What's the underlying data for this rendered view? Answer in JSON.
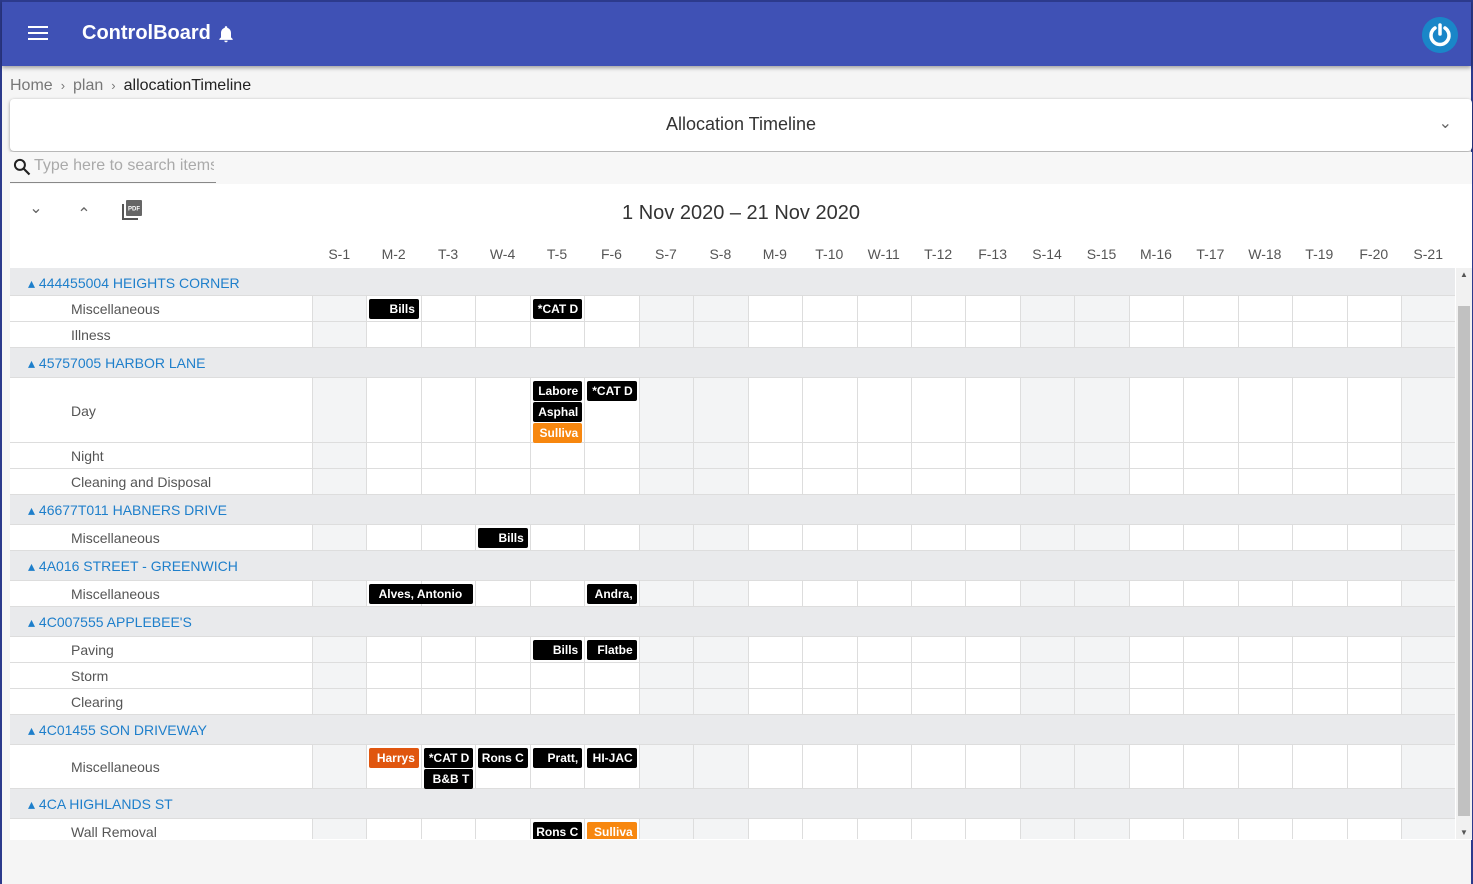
{
  "app": {
    "title": "ControlBoard"
  },
  "breadcrumb": [
    "Home",
    "plan",
    "allocationTimeline"
  ],
  "panel": {
    "title": "Allocation Timeline"
  },
  "search": {
    "placeholder": "Type here to search items"
  },
  "toolbar": {
    "expand": "expand-all",
    "collapse": "collapse-all",
    "pdf": "PDF"
  },
  "timeline": {
    "range": "1 Nov 2020 – 21 Nov 2020",
    "days": [
      "S-1",
      "M-2",
      "T-3",
      "W-4",
      "T-5",
      "F-6",
      "S-7",
      "S-8",
      "M-9",
      "T-10",
      "W-11",
      "T-12",
      "F-13",
      "S-14",
      "S-15",
      "M-16",
      "T-17",
      "W-18",
      "T-19",
      "F-20",
      "S-21"
    ],
    "colors": {
      "black": "#000000",
      "orange": "#f7870f",
      "red": "#e0560f",
      "weekend": "#f3f4f5",
      "group_text": "#1e7fcb",
      "appbar": "#3f51b5"
    },
    "groups": [
      {
        "name": "444455004 HEIGHTS CORNER",
        "rows": [
          {
            "label": "Miscellaneous",
            "events": [
              {
                "text": "Bills",
                "day": "M-2",
                "span": 1,
                "color": "black",
                "lane": 0
              },
              {
                "text": "*CAT D",
                "day": "T-5",
                "span": 1,
                "color": "black",
                "lane": 0
              }
            ]
          },
          {
            "label": "Illness",
            "events": []
          }
        ]
      },
      {
        "name": "45757005 HARBOR LANE",
        "rows": [
          {
            "label": "Day",
            "events": [
              {
                "text": "Labore",
                "day": "T-5",
                "span": 1,
                "color": "black",
                "lane": 0
              },
              {
                "text": "Asphal",
                "day": "T-5",
                "span": 1,
                "color": "black",
                "lane": 1
              },
              {
                "text": "Sulliva",
                "day": "T-5",
                "span": 1,
                "color": "orange",
                "lane": 2
              },
              {
                "text": "*CAT D",
                "day": "F-6",
                "span": 1,
                "color": "black",
                "lane": 0
              }
            ]
          },
          {
            "label": "Night",
            "events": []
          },
          {
            "label": "Cleaning and Disposal",
            "events": []
          }
        ]
      },
      {
        "name": "46677T011 HABNERS DRIVE",
        "rows": [
          {
            "label": "Miscellaneous",
            "events": [
              {
                "text": "Bills",
                "day": "W-4",
                "span": 1,
                "color": "black",
                "lane": 0
              }
            ]
          }
        ]
      },
      {
        "name": "4A016 STREET - GREENWICH",
        "rows": [
          {
            "label": "Miscellaneous",
            "events": [
              {
                "text": "Alves, Antonio",
                "day": "M-2",
                "span": 2,
                "color": "black",
                "lane": 0
              },
              {
                "text": "Andra,",
                "day": "F-6",
                "span": 1,
                "color": "black",
                "lane": 0
              }
            ]
          }
        ]
      },
      {
        "name": "4C007555 APPLEBEE'S",
        "rows": [
          {
            "label": "Paving",
            "events": [
              {
                "text": "Bills",
                "day": "T-5",
                "span": 1,
                "color": "black",
                "lane": 0
              },
              {
                "text": "Flatbe",
                "day": "F-6",
                "span": 1,
                "color": "black",
                "lane": 0
              }
            ]
          },
          {
            "label": "Storm",
            "events": []
          },
          {
            "label": "Clearing",
            "events": []
          }
        ]
      },
      {
        "name": "4C01455 SON DRIVEWAY",
        "rows": [
          {
            "label": "Miscellaneous",
            "events": [
              {
                "text": "Harrys",
                "day": "M-2",
                "span": 1,
                "color": "red",
                "lane": 0
              },
              {
                "text": "*CAT D",
                "day": "T-3",
                "span": 1,
                "color": "black",
                "lane": 0
              },
              {
                "text": "B&B T",
                "day": "T-3",
                "span": 1,
                "color": "black",
                "lane": 1
              },
              {
                "text": "Rons C",
                "day": "W-4",
                "span": 1,
                "color": "black",
                "lane": 0
              },
              {
                "text": "Pratt,",
                "day": "T-5",
                "span": 1,
                "color": "black",
                "lane": 0
              },
              {
                "text": "HI-JAC",
                "day": "F-6",
                "span": 1,
                "color": "black",
                "lane": 0
              }
            ]
          }
        ]
      },
      {
        "name": "4CA HIGHLANDS ST",
        "rows": [
          {
            "label": "Wall Removal",
            "events": [
              {
                "text": "Rons C",
                "day": "T-5",
                "span": 1,
                "color": "black",
                "lane": 0
              },
              {
                "text": "Sulliva",
                "day": "F-6",
                "span": 1,
                "color": "orange",
                "lane": 0
              }
            ]
          }
        ]
      }
    ]
  }
}
